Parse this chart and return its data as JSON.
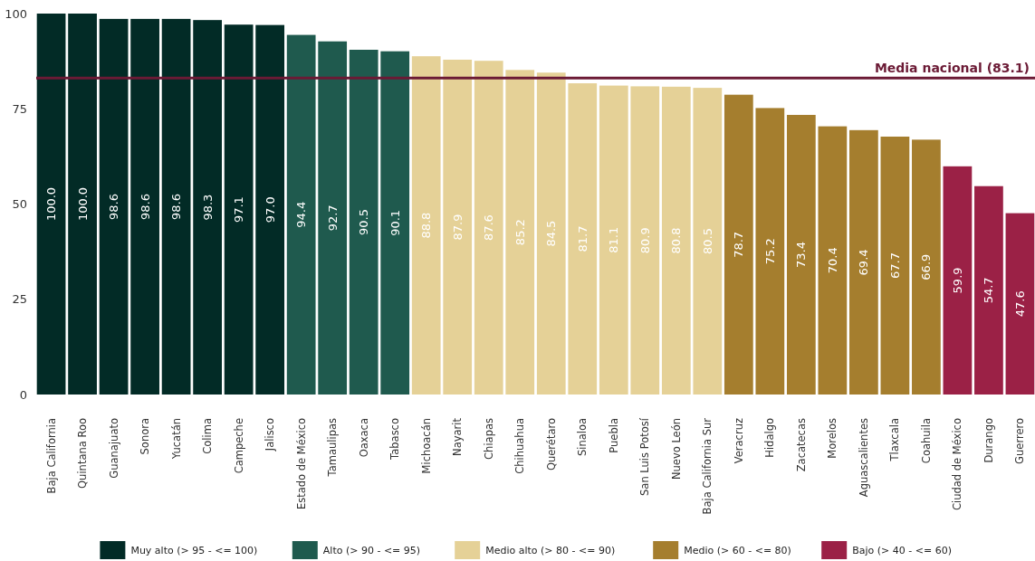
{
  "chart_data": {
    "type": "bar",
    "categories": [
      "Baja California",
      "Quintana Roo",
      "Guanajuato",
      "Sonora",
      "Yucatán",
      "Colima",
      "Campeche",
      "Jalisco",
      "Estado de México",
      "Tamaulipas",
      "Oaxaca",
      "Tabasco",
      "Michoacán",
      "Nayarit",
      "Chiapas",
      "Chihuahua",
      "Querétaro",
      "Sinaloa",
      "Puebla",
      "San Luis Potosí",
      "Nuevo León",
      "Baja California Sur",
      "Veracruz",
      "Hidalgo",
      "Zacatecas",
      "Morelos",
      "Aguascalientes",
      "Tlaxcala",
      "Coahuila",
      "Ciudad de México",
      "Durango",
      "Guerrero"
    ],
    "series": [
      {
        "name": "Muy alto (> 95 - <= 100)",
        "color": "#022b26",
        "values": [
          100.0,
          100.0,
          98.6,
          98.6,
          98.6,
          98.3,
          97.1,
          97.0,
          null,
          null,
          null,
          null,
          null,
          null,
          null,
          null,
          null,
          null,
          null,
          null,
          null,
          null,
          null,
          null,
          null,
          null,
          null,
          null,
          null,
          null,
          null,
          null
        ],
        "value_labels": [
          "100.0",
          "100.0",
          "98.6",
          "98.6",
          "98.6",
          "98.3",
          "97.1",
          "97.0",
          null,
          null,
          null,
          null,
          null,
          null,
          null,
          null,
          null,
          null,
          null,
          null,
          null,
          null,
          null,
          null,
          null,
          null,
          null,
          null,
          null,
          null,
          null,
          null
        ]
      },
      {
        "name": "Alto (> 90 - <= 95)",
        "color": "#1f5a4e",
        "values": [
          null,
          null,
          null,
          null,
          null,
          null,
          null,
          null,
          94.4,
          92.7,
          90.5,
          90.1,
          null,
          null,
          null,
          null,
          null,
          null,
          null,
          null,
          null,
          null,
          null,
          null,
          null,
          null,
          null,
          null,
          null,
          null,
          null,
          null
        ],
        "value_labels": [
          null,
          null,
          null,
          null,
          null,
          null,
          null,
          null,
          "94.4",
          "92.7",
          "90.5",
          "90.1",
          null,
          null,
          null,
          null,
          null,
          null,
          null,
          null,
          null,
          null,
          null,
          null,
          null,
          null,
          null,
          null,
          null,
          null,
          null,
          null
        ]
      },
      {
        "name": "Medio alto (> 80 - <= 90)",
        "color": "#e5d197",
        "values": [
          null,
          null,
          null,
          null,
          null,
          null,
          null,
          null,
          null,
          null,
          null,
          null,
          88.8,
          87.9,
          87.6,
          85.2,
          84.5,
          81.7,
          81.1,
          80.9,
          80.8,
          80.5,
          null,
          null,
          null,
          null,
          null,
          null,
          null,
          null,
          null,
          null
        ],
        "value_labels": [
          null,
          null,
          null,
          null,
          null,
          null,
          null,
          null,
          null,
          null,
          null,
          null,
          "88.8",
          "87.9",
          "87.6",
          "85.2",
          "84.5",
          "81.7",
          "81.1",
          "80.9",
          "80.8",
          "80.5",
          null,
          null,
          null,
          null,
          null,
          null,
          null,
          null,
          null,
          null
        ]
      },
      {
        "name": "Medio (> 60 - <= 80)",
        "color": "#a57e2e",
        "values": [
          null,
          null,
          null,
          null,
          null,
          null,
          null,
          null,
          null,
          null,
          null,
          null,
          null,
          null,
          null,
          null,
          null,
          null,
          null,
          null,
          null,
          null,
          78.7,
          75.2,
          73.4,
          70.4,
          69.4,
          67.7,
          66.9,
          null,
          null,
          null
        ],
        "value_labels": [
          null,
          null,
          null,
          null,
          null,
          null,
          null,
          null,
          null,
          null,
          null,
          null,
          null,
          null,
          null,
          null,
          null,
          null,
          null,
          null,
          null,
          null,
          "78.7",
          "75.2",
          "73.4",
          "70.4",
          "69.4",
          "67.7",
          "66.9",
          null,
          null,
          null
        ]
      },
      {
        "name": "Bajo (> 40 - <= 60)",
        "color": "#9b2146",
        "values": [
          null,
          null,
          null,
          null,
          null,
          null,
          null,
          null,
          null,
          null,
          null,
          null,
          null,
          null,
          null,
          null,
          null,
          null,
          null,
          null,
          null,
          null,
          null,
          null,
          null,
          null,
          null,
          null,
          null,
          59.9,
          54.7,
          47.6
        ],
        "value_labels": [
          null,
          null,
          null,
          null,
          null,
          null,
          null,
          null,
          null,
          null,
          null,
          null,
          null,
          null,
          null,
          null,
          null,
          null,
          null,
          null,
          null,
          null,
          null,
          null,
          null,
          null,
          null,
          null,
          null,
          "59.9",
          "54.7",
          "47.6"
        ]
      }
    ],
    "ylim": [
      0,
      100
    ],
    "yticks": [
      0,
      25,
      50,
      75,
      100
    ],
    "grid": false,
    "legend": "bottom",
    "ref_lines": [
      {
        "axis": "y",
        "value": 83.1,
        "label": "Media nacional (83.1)",
        "color": "#6b1a35"
      }
    ]
  }
}
